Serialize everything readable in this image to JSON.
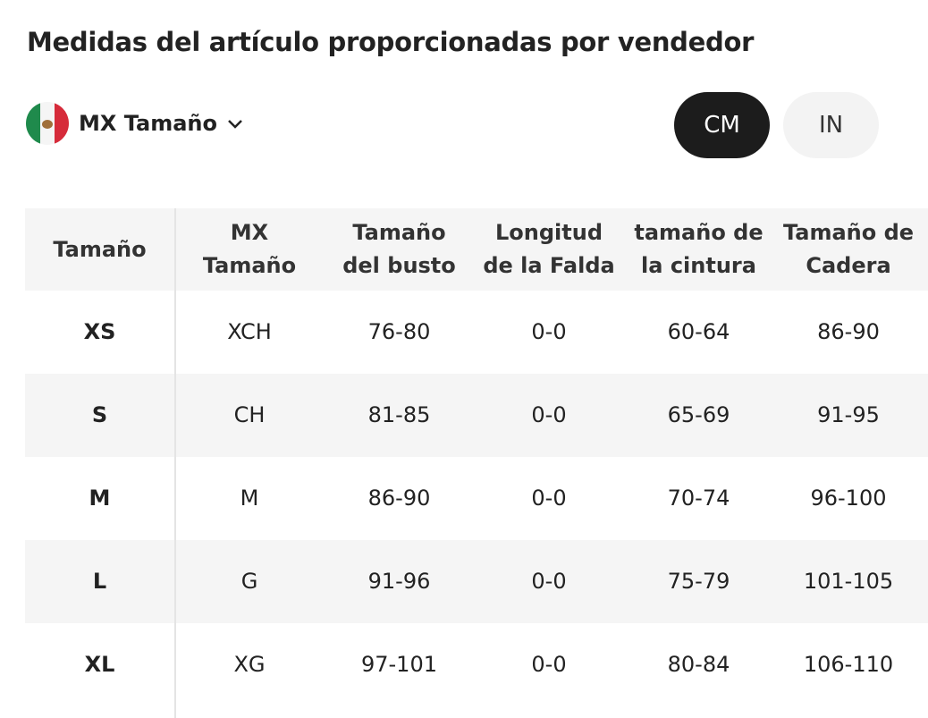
{
  "header": {
    "title": "Medidas del artículo proporcionadas por vendedor"
  },
  "region": {
    "label": "MX Tamaño"
  },
  "units": [
    "CM",
    "IN"
  ],
  "table": {
    "columns": [
      "Tamaño",
      "MX Tamaño",
      "Tamaño del busto",
      "Longitud de la Falda",
      "tamaño de la cintura",
      "Tamaño de Cadera"
    ],
    "rows": [
      [
        "XS",
        "XCH",
        "76-80",
        "0-0",
        "60-64",
        "86-90"
      ],
      [
        "S",
        "CH",
        "81-85",
        "0-0",
        "65-69",
        "91-95"
      ],
      [
        "M",
        "M",
        "86-90",
        "0-0",
        "70-74",
        "96-100"
      ],
      [
        "L",
        "G",
        "91-96",
        "0-0",
        "75-79",
        "101-105"
      ],
      [
        "XL",
        "XG",
        "97-101",
        "0-0",
        "80-84",
        "106-110"
      ]
    ]
  }
}
